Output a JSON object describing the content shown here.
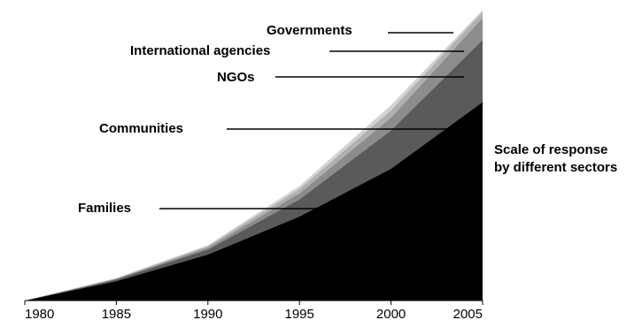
{
  "chart_data": {
    "type": "area",
    "stacked": true,
    "x": [
      1980,
      1985,
      1990,
      1995,
      2000,
      2005
    ],
    "xlim": [
      1980,
      2005
    ],
    "ylim": [
      0,
      100
    ],
    "grid": false,
    "series": [
      {
        "name": "Families",
        "color": "#000000",
        "values": [
          0,
          6.7,
          15.9,
          29.0,
          45.5,
          68.5
        ]
      },
      {
        "name": "Communities",
        "color": "#5a5a5a",
        "values": [
          0,
          0.6,
          1.7,
          5.9,
          13.2,
          21.4
        ]
      },
      {
        "name": "NGOs",
        "color": "#8c8c8c",
        "values": [
          0,
          0.2,
          0.7,
          2.1,
          4.4,
          7.6
        ]
      },
      {
        "name": "International agencies",
        "color": "#b0b0b0",
        "values": [
          0,
          0.2,
          0.5,
          1.5,
          2.5,
          2.1
        ]
      },
      {
        "name": "Governments",
        "color": "#d2d2d2",
        "values": [
          0,
          0.1,
          0.3,
          1.0,
          1.8,
          0.6
        ]
      }
    ],
    "annotation": {
      "line1": "Scale of response",
      "line2": "by different sectors"
    },
    "tick_labels": [
      "1980",
      "1985",
      "1990",
      "1995",
      "2000",
      "2005"
    ]
  }
}
